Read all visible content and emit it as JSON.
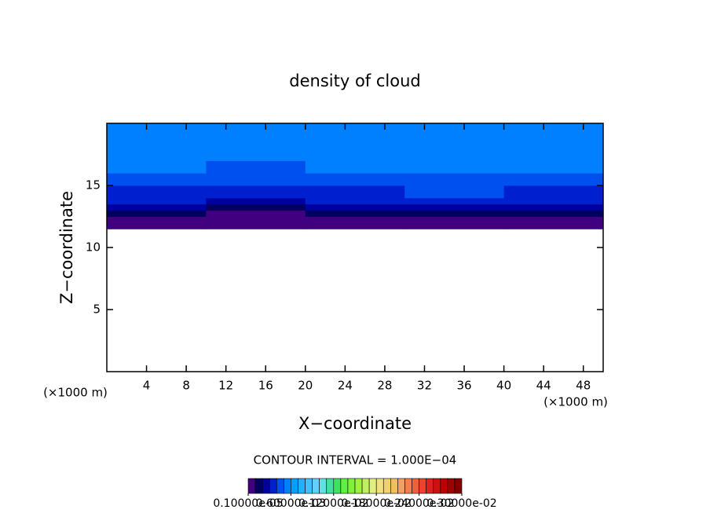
{
  "chart_data": {
    "type": "contour",
    "title": "density of cloud",
    "x_label": "X−coordinate",
    "y_label": "Z−coordinate",
    "x_unit": "(×1000 m)",
    "y_unit": "(×1000 m)",
    "xlim": [
      0,
      50
    ],
    "ylim": [
      0,
      20
    ],
    "xticks": [
      4,
      8,
      12,
      16,
      20,
      24,
      28,
      32,
      36,
      40,
      44,
      48
    ],
    "yticks": [
      5,
      10,
      15
    ],
    "x": [
      0,
      10,
      20,
      30,
      40,
      50
    ],
    "z": [
      11.5,
      12,
      12.5,
      13,
      13.5,
      14,
      15,
      16,
      17,
      18,
      20
    ],
    "values": [
      [
        1e-06,
        1e-06,
        1e-06,
        1e-06,
        1e-06
      ],
      [
        0.0001,
        0.0001,
        0.0001,
        0.0001,
        0.0001
      ],
      [
        0.0002,
        0.0001,
        0.0002,
        0.0002,
        0.0002
      ],
      [
        0.0003,
        0.0002,
        0.0003,
        0.0003,
        0.0003
      ],
      [
        0.0004,
        0.0003,
        0.0004,
        0.0004,
        0.0004
      ],
      [
        0.0004,
        0.0004,
        0.0004,
        0.0005,
        0.0004
      ],
      [
        0.0005,
        0.0005,
        0.0005,
        0.0005,
        0.0005
      ],
      [
        0.0006,
        0.0005,
        0.0006,
        0.0006,
        0.0006
      ],
      [
        0.0006,
        0.0006,
        0.0006,
        0.0006,
        0.0006
      ],
      [
        0.0006,
        0.0006,
        0.0006,
        0.0006,
        0.0006
      ]
    ],
    "contour_interval_label": "CONTOUR INTERVAL = 1.000E−04",
    "level_min": 1e-06,
    "level_step": 0.0001,
    "colors": [
      "#400080",
      "#000060",
      "#0000a0",
      "#0020d0",
      "#0050f0",
      "#0080ff",
      "#00a0ff",
      "#20b0ff",
      "#40c0ff",
      "#60d0ff",
      "#60e0e0",
      "#40e0a0",
      "#40e060",
      "#60f040",
      "#80f040",
      "#a0f040",
      "#c0f060",
      "#e0f080",
      "#f0e080",
      "#f0d070",
      "#f0c060",
      "#f0a060",
      "#f08050",
      "#f06040",
      "#f04030",
      "#e02020",
      "#d01010",
      "#c00000",
      "#a00000",
      "#800000"
    ],
    "colorbar_ticks": [
      {
        "value": 1e-06,
        "label": "0.10000e-05"
      },
      {
        "value": 0.0006,
        "label": "0.60000e-03"
      },
      {
        "value": 0.0012,
        "label": "0.12000e-02"
      },
      {
        "value": 0.0018,
        "label": "0.18000e-02"
      },
      {
        "value": 0.0024,
        "label": "0.24000e-02"
      },
      {
        "value": 0.003,
        "label": "0.30000e-02"
      }
    ],
    "colorbar_lim": [
      1e-06,
      0.003
    ]
  }
}
